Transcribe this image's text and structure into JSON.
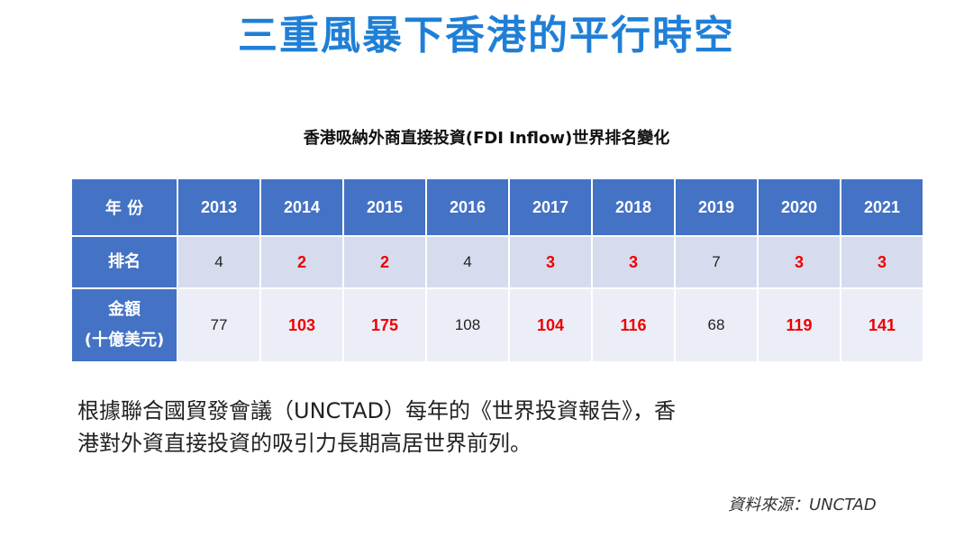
{
  "title": "三重風暴下香港的平行時空",
  "table_caption": "香港吸納外商直接投資(FDI Inflow)世界排名變化",
  "table": {
    "header_label": "年 份",
    "years": [
      "2013",
      "2014",
      "2015",
      "2016",
      "2017",
      "2018",
      "2019",
      "2020",
      "2021"
    ],
    "rank_label": "排名",
    "ranks": [
      "4",
      "2",
      "2",
      "4",
      "3",
      "3",
      "7",
      "3",
      "3"
    ],
    "amount_label_line1": "金額",
    "amount_label_line2": "(十億美元)",
    "amounts": [
      "77",
      "103",
      "175",
      "108",
      "104",
      "116",
      "68",
      "119",
      "141"
    ],
    "highlight_color": "#ee0000",
    "header_color": "#4472c4"
  },
  "note": {
    "line1": "根據聯合國貿發會議（UNCTAD）每年的《世界投資報告》，香",
    "line2": "港對外資直接投資的吸引力長期高居世界前列。"
  },
  "source": "資料來源：UNCTAD"
}
